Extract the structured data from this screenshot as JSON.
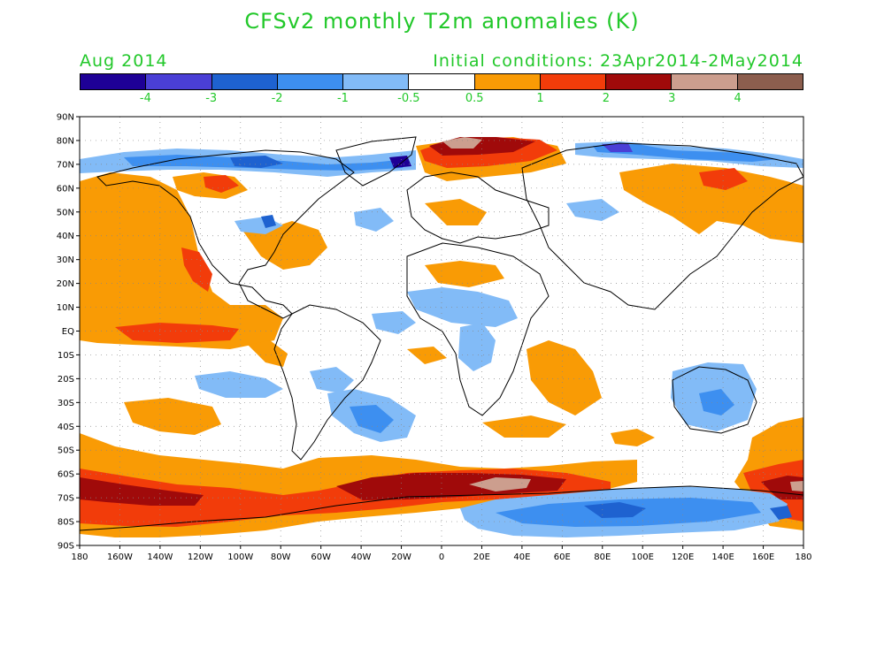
{
  "title": "CFSv2 monthly T2m anomalies (K)",
  "valid_month": "Aug 2014",
  "initial_conditions": "Initial conditions: 23Apr2014-2May2014",
  "legend": {
    "colors": [
      "#1e0096",
      "#4a3fd6",
      "#1e62d0",
      "#3d8ff0",
      "#82bbf7",
      "#ffffff",
      "#f99b05",
      "#f23c0a",
      "#a00a0a",
      "#cc9e8e",
      "#8c5e4e"
    ],
    "labels": [
      "-4",
      "-3",
      "-2",
      "-1",
      "-0.5",
      "0.5",
      "1",
      "2",
      "3",
      "4"
    ]
  },
  "axes": {
    "lat_labels": [
      "90N",
      "80N",
      "70N",
      "60N",
      "50N",
      "40N",
      "30N",
      "20N",
      "10N",
      "EQ",
      "10S",
      "20S",
      "30S",
      "40S",
      "50S",
      "60S",
      "70S",
      "80S",
      "90S"
    ],
    "lon_labels": [
      "180",
      "160W",
      "140W",
      "120W",
      "100W",
      "80W",
      "60W",
      "40W",
      "20W",
      "0",
      "20E",
      "40E",
      "60E",
      "80E",
      "100E",
      "120E",
      "140E",
      "160E",
      "180"
    ]
  }
}
